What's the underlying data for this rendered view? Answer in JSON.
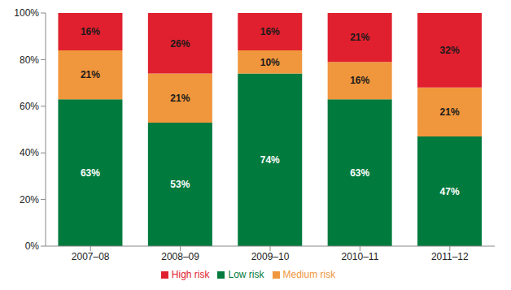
{
  "chart_data": {
    "type": "bar",
    "stacked": true,
    "data_labels": true,
    "grid": false,
    "legend": "bottom",
    "categories": [
      "2007–08",
      "2008–09",
      "2009–10",
      "2010–11",
      "2011–12"
    ],
    "ylim": [
      0,
      100
    ],
    "yticks": [
      {
        "value": 0,
        "label": "0%"
      },
      {
        "value": 20,
        "label": "20%"
      },
      {
        "value": 40,
        "label": "40%"
      },
      {
        "value": 60,
        "label": "60%"
      },
      {
        "value": 80,
        "label": "80%"
      },
      {
        "value": 100,
        "label": "100%"
      }
    ],
    "series": [
      {
        "name": "Low risk",
        "color": "#007a3d",
        "values": [
          63,
          53,
          74,
          63,
          47
        ],
        "value_labels": [
          "63%",
          "53%",
          "74%",
          "63%",
          "47%"
        ]
      },
      {
        "name": "Medium risk",
        "color": "#f0963c",
        "values": [
          21,
          21,
          10,
          16,
          21
        ],
        "value_labels": [
          "21%",
          "21%",
          "10%",
          "16%",
          "21%"
        ]
      },
      {
        "name": "High risk",
        "color": "#e0202e",
        "values": [
          16,
          26,
          16,
          21,
          32
        ],
        "value_labels": [
          "16%",
          "26%",
          "16%",
          "21%",
          "32%"
        ]
      }
    ]
  }
}
